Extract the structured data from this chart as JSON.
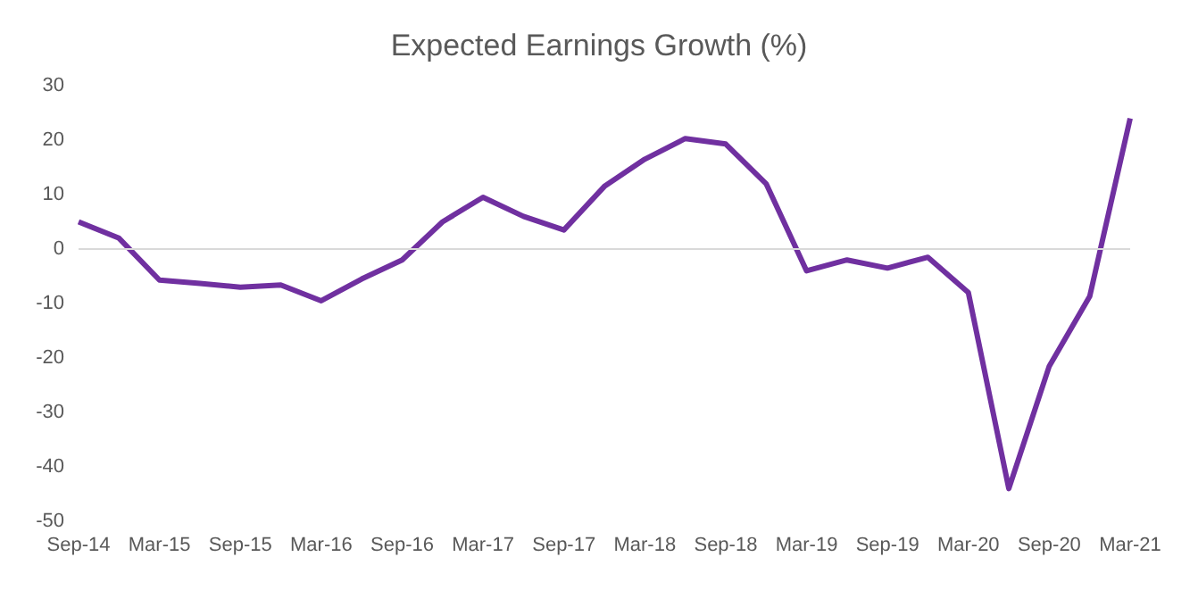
{
  "chart_data": {
    "type": "line",
    "title": "Expected Earnings Growth (%)",
    "categories": [
      "Sep-14",
      null,
      "Mar-15",
      null,
      "Sep-15",
      null,
      "Mar-16",
      null,
      "Sep-16",
      null,
      "Mar-17",
      null,
      "Sep-17",
      null,
      "Mar-18",
      null,
      "Sep-18",
      null,
      "Mar-19",
      null,
      "Sep-19",
      null,
      "Mar-20",
      null,
      "Sep-20",
      null,
      "Mar-21"
    ],
    "series": [
      {
        "color": "#7030a0",
        "values": [
          5,
          2,
          -5.7,
          -6.3,
          -7,
          -6.6,
          -9.5,
          -5.5,
          -2,
          5,
          9.5,
          6,
          3.5,
          11.5,
          16.5,
          20.3,
          19.3,
          12,
          -4,
          -2,
          -3.5,
          -1.5,
          -8,
          -44,
          -21.5,
          -8.7,
          24
        ]
      }
    ],
    "ylim": [
      -50,
      30
    ],
    "yticks": [
      -50,
      -40,
      -30,
      -20,
      -10,
      0,
      10,
      20,
      30
    ],
    "ref_lines": [
      {
        "axis": "y",
        "value": 0,
        "color": "#d9d9d9"
      }
    ],
    "grid": false,
    "marker": "none",
    "line_style": "solid"
  }
}
